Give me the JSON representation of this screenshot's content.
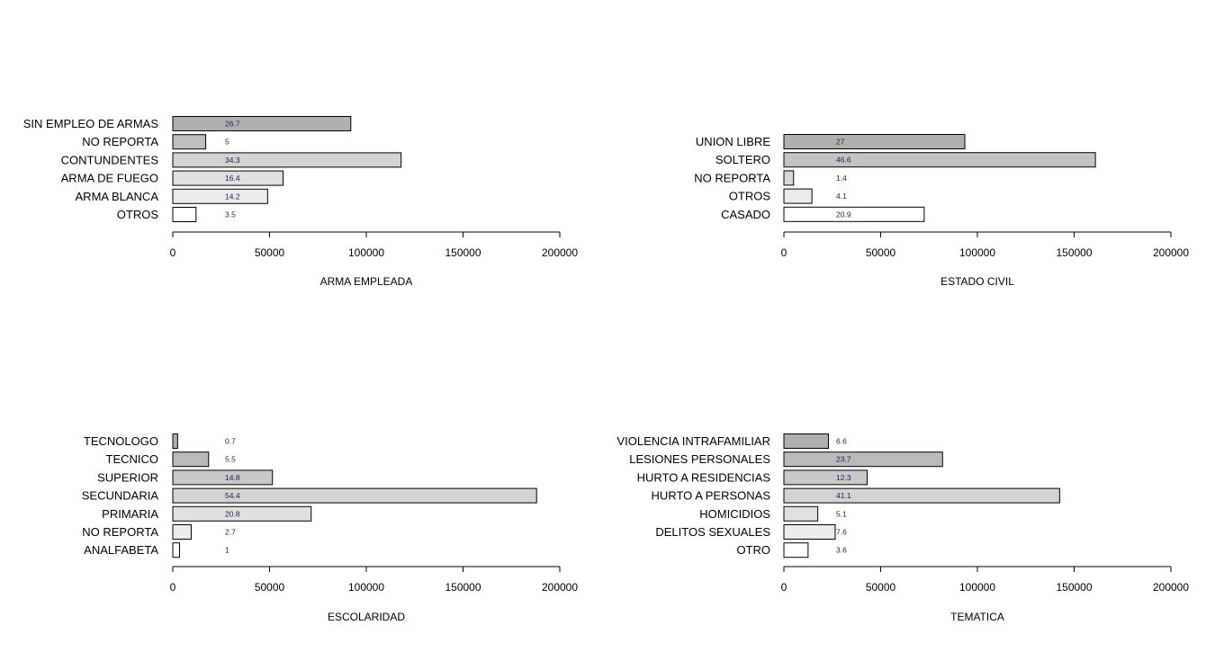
{
  "chart_data": [
    {
      "type": "bar",
      "orientation": "horizontal",
      "xlabel": "ARMA EMPLEADA",
      "xlim": [
        0,
        200000
      ],
      "xticks": [
        0,
        50000,
        100000,
        150000,
        200000
      ],
      "xtick_labels": [
        "0",
        "50000",
        "100000",
        "150000",
        "200000"
      ],
      "categories": [
        "SIN EMPLEO DE ARMAS",
        "NO REPORTA",
        "CONTUNDENTES",
        "ARMA DE FUEGO",
        "ARMA BLANCA",
        "OTROS"
      ],
      "values": [
        92000,
        17000,
        118000,
        57000,
        49000,
        12000
      ],
      "labels": [
        "26.7",
        "5",
        "34.3",
        "16.4",
        "14.2",
        "3.5"
      ],
      "colors": [
        "#b0b0b0",
        "#bebebe",
        "#d3d3d3",
        "#e0e0e0",
        "#ececec",
        "#ffffff"
      ]
    },
    {
      "type": "bar",
      "orientation": "horizontal",
      "xlabel": "ESTADO CIVIL",
      "xlim": [
        0,
        200000
      ],
      "xticks": [
        0,
        50000,
        100000,
        150000,
        200000
      ],
      "xtick_labels": [
        "0",
        "50000",
        "100000",
        "150000",
        "200000"
      ],
      "categories": [
        "UNION LIBRE",
        "SOLTERO",
        "NO REPORTA",
        "OTROS",
        "CASADO"
      ],
      "values": [
        93500,
        161000,
        5000,
        14500,
        72500
      ],
      "labels": [
        "27",
        "46.6",
        "1.4",
        "4.1",
        "20.9"
      ],
      "colors": [
        "#b0b0b0",
        "#c4c4c4",
        "#d8d8d8",
        "#ebebeb",
        "#ffffff"
      ]
    },
    {
      "type": "bar",
      "orientation": "horizontal",
      "xlabel": "ESCOLARIDAD",
      "xlim": [
        0,
        200000
      ],
      "xticks": [
        0,
        50000,
        100000,
        150000,
        200000
      ],
      "xtick_labels": [
        "0",
        "50000",
        "100000",
        "150000",
        "200000"
      ],
      "categories": [
        "TECNOLOGO",
        "TECNICO",
        "SUPERIOR",
        "SECUNDARIA",
        "PRIMARIA",
        "NO REPORTA",
        "ANALFABETA"
      ],
      "values": [
        2500,
        18500,
        51500,
        188000,
        71500,
        9500,
        3500
      ],
      "labels": [
        "0.7",
        "5.5",
        "14.8",
        "54.4",
        "20.8",
        "2.7",
        "1"
      ],
      "colors": [
        "#b0b0b0",
        "#bababa",
        "#c8c8c8",
        "#d3d3d3",
        "#e0e0e0",
        "#ececec",
        "#ffffff"
      ]
    },
    {
      "type": "bar",
      "orientation": "horizontal",
      "xlabel": "TEMATICA",
      "xlim": [
        0,
        200000
      ],
      "xticks": [
        0,
        50000,
        100000,
        150000,
        200000
      ],
      "xtick_labels": [
        "0",
        "50000",
        "100000",
        "150000",
        "200000"
      ],
      "categories": [
        "VIOLENCIA INTRAFAMILIAR",
        "LESIONES PERSONALES",
        "HURTO A RESIDENCIAS",
        "HURTO A PERSONAS",
        "HOMICIDIOS",
        "DELITOS SEXUALES",
        "OTRO"
      ],
      "values": [
        23000,
        82000,
        43000,
        142500,
        17500,
        26500,
        12500
      ],
      "labels": [
        "6.6",
        "23.7",
        "12.3",
        "41.1",
        "5.1",
        "7.6",
        "3.6"
      ],
      "colors": [
        "#b0b0b0",
        "#bababa",
        "#c8c8c8",
        "#d3d3d3",
        "#e0e0e0",
        "#ececec",
        "#ffffff"
      ]
    }
  ]
}
